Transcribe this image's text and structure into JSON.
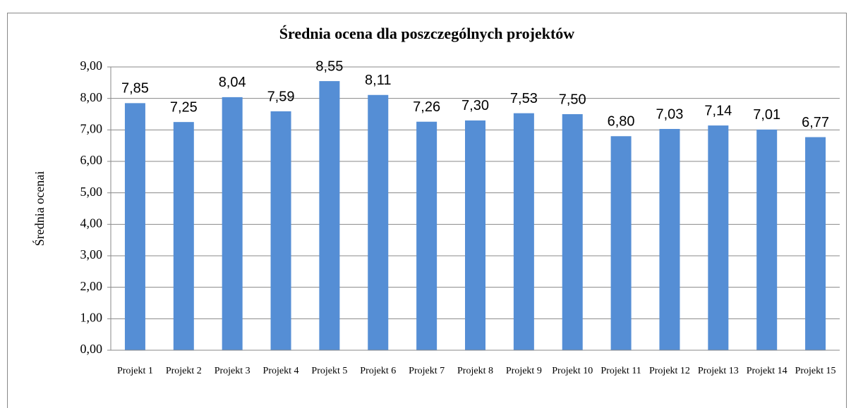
{
  "chart_data": {
    "type": "bar",
    "title": "Średnia ocena dla poszczególnych projektów",
    "y_label": "Średnia ocenai",
    "categories": [
      "Projekt 1",
      "Projekt 2",
      "Projekt 3",
      "Projekt 4",
      "Projekt 5",
      "Projekt 6",
      "Projekt 7",
      "Projekt 8",
      "Projekt 9",
      "Projekt 10",
      "Projekt 11",
      "Projekt 12",
      "Projekt 13",
      "Projekt 14",
      "Projekt 15"
    ],
    "values": [
      7.85,
      7.25,
      8.04,
      7.59,
      8.55,
      8.11,
      7.26,
      7.3,
      7.53,
      7.5,
      6.8,
      7.03,
      7.14,
      7.01,
      6.77
    ],
    "value_labels": [
      "7,85",
      "7,25",
      "8,04",
      "7,59",
      "8,55",
      "8,11",
      "7,26",
      "7,30",
      "7,53",
      "7,50",
      "6,80",
      "7,03",
      "7,14",
      "7,01",
      "6,77"
    ],
    "color": "#558ed5",
    "ylim": [
      0,
      9
    ],
    "yticks": [
      {
        "value": 0,
        "label": "0,00"
      },
      {
        "value": 1,
        "label": "1,00"
      },
      {
        "value": 2,
        "label": "2,00"
      },
      {
        "value": 3,
        "label": "3,00"
      },
      {
        "value": 4,
        "label": "4,00"
      },
      {
        "value": 5,
        "label": "5,00"
      },
      {
        "value": 6,
        "label": "6,00"
      },
      {
        "value": 7,
        "label": "7,00"
      },
      {
        "value": 8,
        "label": "8,00"
      },
      {
        "value": 9,
        "label": "9,00"
      }
    ],
    "grid": true
  }
}
